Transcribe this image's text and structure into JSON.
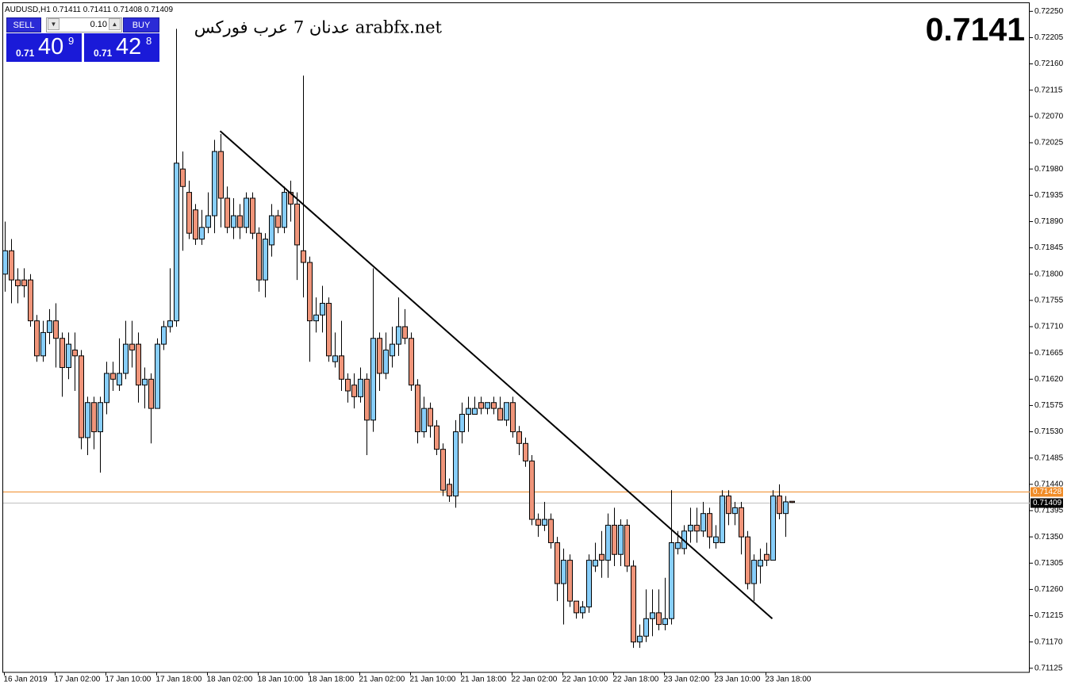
{
  "chart_data": {
    "type": "candlestick",
    "symbol": "AUDUSD,H1",
    "categories": [
      "16 Jan 2019",
      null,
      null,
      null,
      null,
      null,
      null,
      null,
      "17 Jan 02:00",
      null,
      null,
      null,
      null,
      null,
      null,
      null,
      "17 Jan 10:00",
      null,
      null,
      null,
      null,
      null,
      null,
      null,
      "17 Jan 18:00",
      null,
      null,
      null,
      null,
      null,
      null,
      null,
      "18 Jan 02:00",
      null,
      null,
      null,
      null,
      null,
      null,
      null,
      "18 Jan 10:00",
      null,
      null,
      null,
      null,
      null,
      null,
      null,
      "18 Jan 18:00",
      null,
      null,
      null,
      null,
      null,
      null,
      null,
      "21 Jan 02:00",
      null,
      null,
      null,
      null,
      null,
      null,
      null,
      "21 Jan 10:00",
      null,
      null,
      null,
      null,
      null,
      null,
      null,
      "21 Jan 18:00",
      null,
      null,
      null,
      null,
      null,
      null,
      null,
      "22 Jan 02:00",
      null,
      null,
      null,
      null,
      null,
      null,
      null,
      "22 Jan 10:00",
      null,
      null,
      null,
      null,
      null,
      null,
      null,
      "22 Jan 18:00",
      null,
      null,
      null,
      null,
      null,
      null,
      null,
      "23 Jan 02:00",
      null,
      null,
      null,
      null,
      null,
      null,
      null,
      "23 Jan 10:00",
      null,
      null,
      null,
      null,
      null,
      null,
      null,
      "23 Jan 18:00",
      null,
      null,
      null,
      null
    ],
    "open": [
      0.718,
      0.7184,
      0.7179,
      0.7179,
      0.7179,
      0.7172,
      0.7166,
      0.717,
      0.7172,
      0.7169,
      0.7164,
      0.7167,
      0.7166,
      0.7152,
      0.7158,
      0.7153,
      0.7158,
      0.7163,
      0.7161,
      0.7163,
      0.7168,
      0.7168,
      0.7161,
      0.7162,
      0.7157,
      0.7168,
      0.7171,
      0.7172,
      0.7198,
      0.7194,
      0.7191,
      0.7186,
      0.7188,
      0.719,
      0.7201,
      0.7193,
      0.7188,
      0.719,
      0.7188,
      0.7193,
      0.7187,
      0.7179,
      0.7185,
      0.719,
      0.7188,
      0.7194,
      0.7192,
      0.7184,
      0.7182,
      0.7172,
      0.7173,
      0.7175,
      0.7165,
      0.7166,
      0.7162,
      0.7161,
      0.7159,
      0.7162,
      0.7155,
      0.7169,
      0.7163,
      0.7166,
      0.7168,
      0.7171,
      0.7169,
      0.7161,
      0.7153,
      0.7157,
      0.7154,
      0.715,
      0.7144,
      0.7142,
      0.7153,
      0.7156,
      0.7156,
      0.7158,
      0.7157,
      0.7158,
      0.7157,
      0.7155,
      0.7158,
      0.7153,
      0.7151,
      0.7148,
      0.7138,
      0.7137,
      0.7138,
      0.7134,
      0.7127,
      0.7131,
      0.7124,
      0.7122,
      0.7123,
      0.713,
      0.7132,
      0.7131,
      0.7137,
      0.7132,
      0.7137,
      0.713,
      0.7117,
      0.7118,
      0.7121,
      0.7122,
      0.712,
      0.7121,
      0.7133,
      0.7133,
      0.7136,
      0.7137,
      0.7136,
      0.7139,
      0.7134,
      0.7134,
      0.7142,
      0.7139,
      0.714,
      0.7135,
      0.7127,
      0.713,
      0.7132,
      0.7131,
      0.7142,
      0.7139,
      0.71411
    ],
    "high": [
      0.7189,
      0.7186,
      0.7181,
      0.7181,
      0.718,
      0.7173,
      0.7172,
      0.7174,
      0.7175,
      0.717,
      0.717,
      0.717,
      0.7167,
      0.7159,
      0.7159,
      0.7159,
      0.7165,
      0.7165,
      0.7169,
      0.7172,
      0.7172,
      0.717,
      0.7164,
      0.7163,
      0.7169,
      0.7172,
      0.7181,
      0.7222,
      0.7201,
      0.7196,
      0.7192,
      0.7191,
      0.7194,
      0.7203,
      0.7204,
      0.7195,
      0.7193,
      0.7192,
      0.7194,
      0.7194,
      0.7188,
      0.7187,
      0.7192,
      0.7191,
      0.7195,
      0.7196,
      0.7194,
      0.7214,
      0.7183,
      0.7176,
      0.7178,
      0.7176,
      0.717,
      0.7172,
      0.7163,
      0.7163,
      0.7164,
      0.7163,
      0.7181,
      0.717,
      0.717,
      0.7171,
      0.7176,
      0.7174,
      0.717,
      0.7162,
      0.7159,
      0.7158,
      0.7155,
      0.7151,
      0.7145,
      0.7155,
      0.7158,
      0.7159,
      0.7159,
      0.7159,
      0.7158,
      0.7159,
      0.7159,
      0.7158,
      0.7159,
      0.7154,
      0.7152,
      0.7149,
      0.7139,
      0.7141,
      0.7139,
      0.7135,
      0.7133,
      0.7132,
      0.7124,
      0.7124,
      0.7132,
      0.7134,
      0.7136,
      0.7139,
      0.714,
      0.7138,
      0.7138,
      0.7131,
      0.712,
      0.7126,
      0.7126,
      0.7126,
      0.7128,
      0.7143,
      0.7136,
      0.7137,
      0.714,
      0.714,
      0.7141,
      0.714,
      0.7137,
      0.7143,
      0.7143,
      0.7141,
      0.7141,
      0.7136,
      0.7132,
      0.7133,
      0.7134,
      0.7143,
      0.7144,
      0.7142,
      0.71411
    ],
    "low": [
      0.7177,
      0.7175,
      0.7175,
      0.7176,
      0.7171,
      0.7165,
      0.7165,
      0.7168,
      0.7164,
      0.7159,
      0.7162,
      0.716,
      0.715,
      0.7149,
      0.715,
      0.7146,
      0.7156,
      0.716,
      0.716,
      0.7162,
      0.7164,
      0.7158,
      0.7157,
      0.7151,
      0.7157,
      0.7167,
      0.717,
      0.7171,
      0.7184,
      0.7186,
      0.7185,
      0.7185,
      0.7187,
      0.7187,
      0.7188,
      0.7187,
      0.7186,
      0.7186,
      0.7187,
      0.7186,
      0.7177,
      0.7176,
      0.7183,
      0.7187,
      0.7187,
      0.7189,
      0.7179,
      0.7176,
      0.7165,
      0.717,
      0.717,
      0.7165,
      0.7164,
      0.716,
      0.7158,
      0.7157,
      0.7158,
      0.7149,
      0.7153,
      0.716,
      0.7162,
      0.7164,
      0.7166,
      0.7168,
      0.716,
      0.7151,
      0.7152,
      0.7152,
      0.7149,
      0.7142,
      0.7141,
      0.714,
      0.7151,
      0.7153,
      0.7156,
      0.7156,
      0.7156,
      0.7156,
      0.7155,
      0.7154,
      0.7152,
      0.7149,
      0.7147,
      0.7137,
      0.7135,
      0.7136,
      0.7133,
      0.7124,
      0.712,
      0.7123,
      0.7121,
      0.7121,
      0.7122,
      0.7129,
      0.7128,
      0.7128,
      0.713,
      0.713,
      0.7129,
      0.7116,
      0.7116,
      0.7117,
      0.7118,
      0.7119,
      0.7119,
      0.712,
      0.7132,
      0.7132,
      0.7134,
      0.7134,
      0.7135,
      0.7133,
      0.7133,
      0.7134,
      0.7137,
      0.7137,
      0.7132,
      0.7126,
      0.7124,
      0.7127,
      0.713,
      0.7131,
      0.7138,
      0.7135,
      0.71408
    ],
    "close": [
      0.7184,
      0.7179,
      0.7178,
      0.7178,
      0.7172,
      0.7166,
      0.717,
      0.7172,
      0.7169,
      0.7164,
      0.7168,
      0.7166,
      0.7152,
      0.7158,
      0.7153,
      0.7158,
      0.7163,
      0.7162,
      0.7163,
      0.7168,
      0.7167,
      0.7161,
      0.7162,
      0.7157,
      0.7168,
      0.7171,
      0.7172,
      0.7199,
      0.7195,
      0.7187,
      0.7186,
      0.7188,
      0.719,
      0.7201,
      0.7193,
      0.7188,
      0.719,
      0.7188,
      0.7193,
      0.7187,
      0.7179,
      0.7186,
      0.719,
      0.7188,
      0.7194,
      0.7192,
      0.7185,
      0.7182,
      0.7172,
      0.7173,
      0.7175,
      0.7166,
      0.7166,
      0.7162,
      0.716,
      0.7159,
      0.7162,
      0.7155,
      0.7169,
      0.7163,
      0.7167,
      0.7168,
      0.7171,
      0.7169,
      0.7161,
      0.7153,
      0.7157,
      0.7154,
      0.715,
      0.7143,
      0.7142,
      0.7153,
      0.7156,
      0.7157,
      0.7157,
      0.7157,
      0.7158,
      0.7157,
      0.7155,
      0.7158,
      0.7153,
      0.7151,
      0.7148,
      0.7138,
      0.7137,
      0.7138,
      0.7134,
      0.7127,
      0.7131,
      0.7124,
      0.7122,
      0.7123,
      0.7131,
      0.7131,
      0.7131,
      0.7137,
      0.7132,
      0.7137,
      0.713,
      0.7117,
      0.7118,
      0.7121,
      0.7122,
      0.712,
      0.7121,
      0.7134,
      0.7134,
      0.7136,
      0.7137,
      0.7136,
      0.7139,
      0.7135,
      0.7135,
      0.7142,
      0.7139,
      0.714,
      0.7135,
      0.7127,
      0.7131,
      0.7131,
      0.7131,
      0.7142,
      0.7139,
      0.7141,
      0.71409
    ],
    "up_color": "#87cefa",
    "down_color": "#f0957a",
    "ylim": [
      0.71118,
      0.72264
    ],
    "yticks": [
      {
        "value": 0.7225,
        "label": "0.72250"
      },
      {
        "value": 0.72205,
        "label": "0.72205"
      },
      {
        "value": 0.7216,
        "label": "0.72160"
      },
      {
        "value": 0.72115,
        "label": "0.72115"
      },
      {
        "value": 0.7207,
        "label": "0.72070"
      },
      {
        "value": 0.72025,
        "label": "0.72025"
      },
      {
        "value": 0.7198,
        "label": "0.71980"
      },
      {
        "value": 0.71935,
        "label": "0.71935"
      },
      {
        "value": 0.7189,
        "label": "0.71890"
      },
      {
        "value": 0.71845,
        "label": "0.71845"
      },
      {
        "value": 0.718,
        "label": "0.71800"
      },
      {
        "value": 0.71755,
        "label": "0.71755"
      },
      {
        "value": 0.7171,
        "label": "0.71710"
      },
      {
        "value": 0.71665,
        "label": "0.71665"
      },
      {
        "value": 0.7162,
        "label": "0.71620"
      },
      {
        "value": 0.71575,
        "label": "0.71575"
      },
      {
        "value": 0.7153,
        "label": "0.71530"
      },
      {
        "value": 0.71485,
        "label": "0.71485"
      },
      {
        "value": 0.7144,
        "label": "0.71440"
      },
      {
        "value": 0.71395,
        "label": "0.71395"
      },
      {
        "value": 0.7135,
        "label": "0.71350"
      },
      {
        "value": 0.71305,
        "label": "0.71305"
      },
      {
        "value": 0.7126,
        "label": "0.71260"
      },
      {
        "value": 0.71215,
        "label": "0.71215"
      },
      {
        "value": 0.7117,
        "label": "0.71170"
      },
      {
        "value": 0.71125,
        "label": "0.71125"
      }
    ],
    "ask_line": {
      "value": 0.71428,
      "color": "#f08c28"
    },
    "bid_line": {
      "value": 0.71409,
      "color": "#c0c0c0"
    },
    "trendline": {
      "x": [
        34,
        121
      ],
      "y": [
        0.72045,
        0.7121
      ],
      "color": "#000000"
    },
    "watermark": "عدنان 7 عرب فوركس arabfx.net",
    "price_display": "0.7141"
  },
  "trade_panel": {
    "sell": "SELL",
    "buy": "BUY",
    "lot": "0.10",
    "sell_price": {
      "prefix": "0.71",
      "big": "40",
      "sup": "9"
    },
    "buy_price": {
      "prefix": "0.71",
      "big": "42",
      "sup": "8"
    }
  }
}
